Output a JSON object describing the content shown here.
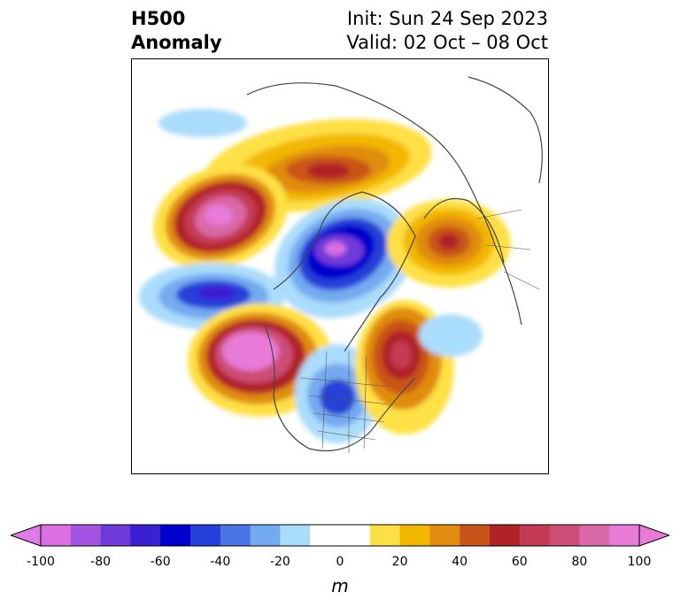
{
  "title": {
    "left_line1": "H500",
    "left_line2": "Anomaly",
    "init": "Init: Sun 24 Sep 2023",
    "valid": "Valid: 02 Oct – 08 Oct"
  },
  "map": {
    "projection": "north-polar-stereographic",
    "field": "500 hPa geopotential height anomaly",
    "features": [
      {
        "name": "ridge-eastern-pacific",
        "sign": "positive",
        "peak": 100
      },
      {
        "name": "ridge-bering-sea",
        "sign": "positive",
        "peak": 100
      },
      {
        "name": "ridge-arctic-siberia",
        "sign": "positive",
        "peak": 60
      },
      {
        "name": "ridge-northern-europe",
        "sign": "positive",
        "peak": 60
      },
      {
        "name": "ridge-northwest-atlantic",
        "sign": "positive",
        "peak": 60
      },
      {
        "name": "trough-central-arctic",
        "sign": "negative",
        "peak": -100
      },
      {
        "name": "trough-north-pacific",
        "sign": "negative",
        "peak": -60
      },
      {
        "name": "trough-central-us",
        "sign": "negative",
        "peak": -60
      }
    ]
  },
  "colorbar": {
    "unit_label": "m",
    "min": -100,
    "max": 100,
    "step": 10,
    "extend": "both",
    "tick_labels": [
      "-100",
      "-80",
      "-60",
      "-40",
      "-20",
      "0",
      "20",
      "40",
      "60",
      "80",
      "100"
    ],
    "colors": [
      "#d96fe0",
      "#a255e0",
      "#6f3ad8",
      "#3b1fd2",
      "#0000cc",
      "#2540d8",
      "#4a75e6",
      "#74aaf0",
      "#aadcfb",
      "#ffffff",
      "#ffffff",
      "#ffe044",
      "#f2b700",
      "#e08c10",
      "#c95418",
      "#b02226",
      "#c43a52",
      "#cc4d76",
      "#d968a6",
      "#e87ad8"
    ],
    "under_color": "#e07ae6",
    "over_color": "#e87ad8"
  }
}
